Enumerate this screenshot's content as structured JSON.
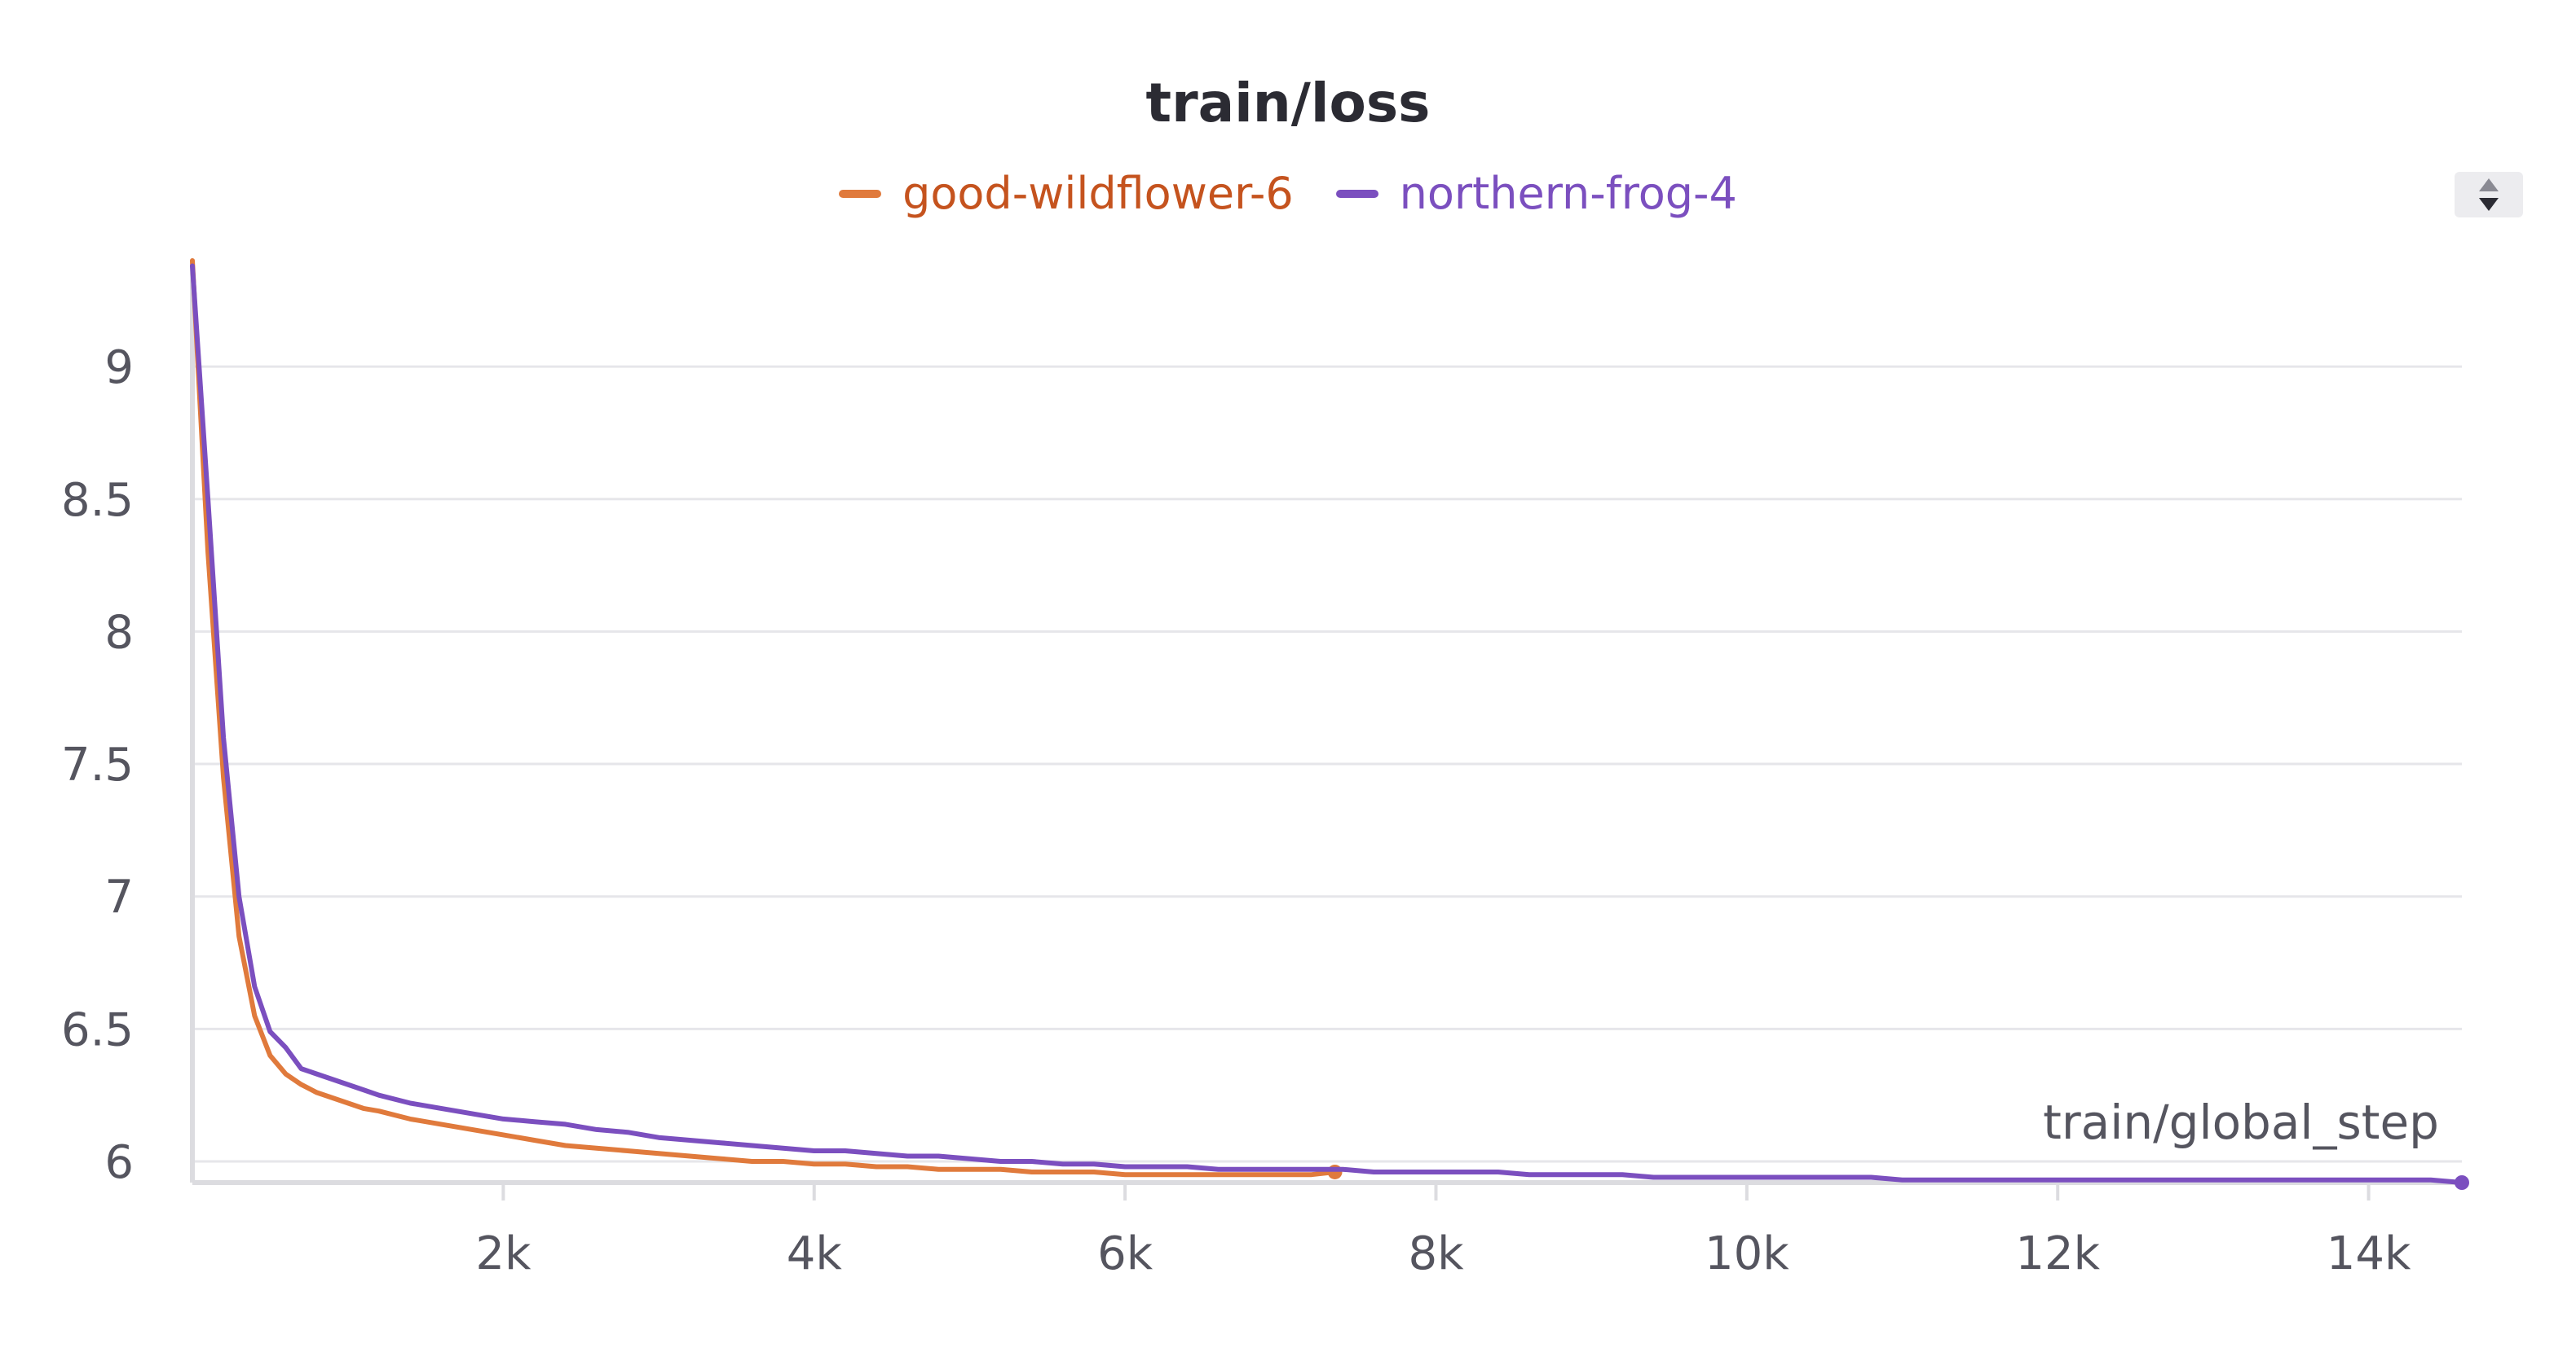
{
  "chart_data": {
    "type": "line",
    "title": "train/loss",
    "xlabel": "train/global_step",
    "ylabel": "",
    "xlim": [
      0,
      14600
    ],
    "ylim": [
      5.92,
      9.4
    ],
    "grid": true,
    "legend_position": "top-center",
    "xticks": [
      2000,
      4000,
      6000,
      8000,
      10000,
      12000,
      14000
    ],
    "xtick_labels": [
      "2k",
      "4k",
      "6k",
      "8k",
      "10k",
      "12k",
      "14k"
    ],
    "yticks": [
      6,
      6.5,
      7,
      7.5,
      8,
      8.5,
      9
    ],
    "ytick_labels": [
      "6",
      "6.5",
      "7",
      "7.5",
      "8",
      "8.5",
      "9"
    ],
    "series": [
      {
        "name": "good-wildflower-6",
        "color": "#e07a3c",
        "label_color": "#c5531e",
        "x": [
          0,
          100,
          200,
          300,
          400,
          500,
          600,
          700,
          800,
          900,
          1000,
          1100,
          1200,
          1400,
          1600,
          1800,
          2000,
          2200,
          2400,
          2600,
          2800,
          3000,
          3200,
          3400,
          3600,
          3800,
          4000,
          4200,
          4400,
          4600,
          4800,
          5000,
          5200,
          5400,
          5600,
          5800,
          6000,
          6200,
          6400,
          6600,
          6800,
          7000,
          7200,
          7350
        ],
        "y": [
          9.4,
          8.3,
          7.45,
          6.85,
          6.55,
          6.4,
          6.33,
          6.29,
          6.26,
          6.24,
          6.22,
          6.2,
          6.19,
          6.16,
          6.14,
          6.12,
          6.1,
          6.08,
          6.06,
          6.05,
          6.04,
          6.03,
          6.02,
          6.01,
          6.0,
          6.0,
          5.99,
          5.99,
          5.98,
          5.98,
          5.97,
          5.97,
          5.97,
          5.96,
          5.96,
          5.96,
          5.95,
          5.95,
          5.95,
          5.95,
          5.95,
          5.95,
          5.95,
          5.96
        ]
      },
      {
        "name": "northern-frog-4",
        "color": "#7b4fbf",
        "label_color": "#7b4fbf",
        "x": [
          0,
          100,
          200,
          300,
          400,
          500,
          600,
          700,
          800,
          900,
          1000,
          1100,
          1200,
          1400,
          1600,
          1800,
          2000,
          2200,
          2400,
          2600,
          2800,
          3000,
          3200,
          3400,
          3600,
          3800,
          4000,
          4200,
          4400,
          4600,
          4800,
          5000,
          5200,
          5400,
          5600,
          5800,
          6000,
          6200,
          6400,
          6600,
          6800,
          7000,
          7200,
          7400,
          7600,
          7800,
          8000,
          8200,
          8400,
          8600,
          8800,
          9000,
          9200,
          9400,
          9600,
          9800,
          10000,
          10200,
          10400,
          10600,
          10800,
          11000,
          11200,
          11400,
          11600,
          11800,
          12000,
          12200,
          12400,
          12600,
          12800,
          13000,
          13200,
          13400,
          13600,
          13800,
          14000,
          14200,
          14400,
          14600
        ],
        "y": [
          9.38,
          8.5,
          7.6,
          7.0,
          6.66,
          6.49,
          6.43,
          6.35,
          6.33,
          6.31,
          6.29,
          6.27,
          6.25,
          6.22,
          6.2,
          6.18,
          6.16,
          6.15,
          6.14,
          6.12,
          6.11,
          6.09,
          6.08,
          6.07,
          6.06,
          6.05,
          6.04,
          6.04,
          6.03,
          6.02,
          6.02,
          6.01,
          6.0,
          6.0,
          5.99,
          5.99,
          5.98,
          5.98,
          5.98,
          5.97,
          5.97,
          5.97,
          5.97,
          5.97,
          5.96,
          5.96,
          5.96,
          5.96,
          5.96,
          5.95,
          5.95,
          5.95,
          5.95,
          5.94,
          5.94,
          5.94,
          5.94,
          5.94,
          5.94,
          5.94,
          5.94,
          5.93,
          5.93,
          5.93,
          5.93,
          5.93,
          5.93,
          5.93,
          5.93,
          5.93,
          5.93,
          5.93,
          5.93,
          5.93,
          5.93,
          5.93,
          5.93,
          5.93,
          5.93,
          5.92
        ]
      }
    ]
  },
  "icons": {
    "sort_toggle": "sort-up-down-icon"
  }
}
